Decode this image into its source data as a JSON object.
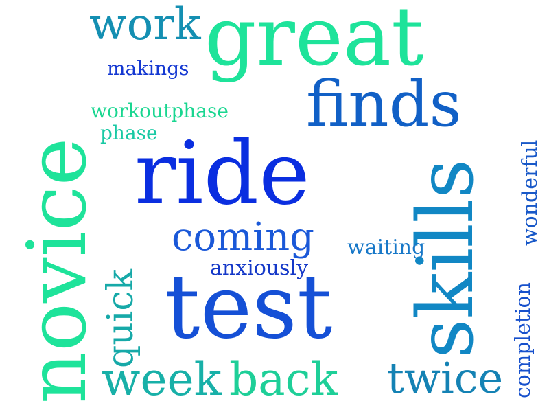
{
  "cloud": {
    "words": [
      {
        "id": "great",
        "text": "great",
        "color": "#1ee39a"
      },
      {
        "id": "ride",
        "text": "ride",
        "color": "#0a2ee0"
      },
      {
        "id": "test",
        "text": "test",
        "color": "#1550d6"
      },
      {
        "id": "novice",
        "text": "novice",
        "color": "#1ee39a"
      },
      {
        "id": "skills",
        "text": "skills",
        "color": "#1187c4"
      },
      {
        "id": "finds",
        "text": "finds",
        "color": "#1160c6"
      },
      {
        "id": "work",
        "text": "work",
        "color": "#148fb2"
      },
      {
        "id": "makings",
        "text": "makings",
        "color": "#1438d2"
      },
      {
        "id": "workoutphase",
        "text": "workoutphase",
        "color": "#19d690"
      },
      {
        "id": "phase",
        "text": "phase",
        "color": "#19c9a4"
      },
      {
        "id": "coming",
        "text": "coming",
        "color": "#1a58d8"
      },
      {
        "id": "waiting",
        "text": "waiting",
        "color": "#1878c8"
      },
      {
        "id": "anxiously",
        "text": "anxiously",
        "color": "#1438c8"
      },
      {
        "id": "quick",
        "text": "quick",
        "color": "#16a9a8"
      },
      {
        "id": "week",
        "text": "week",
        "color": "#18b0a8"
      },
      {
        "id": "back",
        "text": "back",
        "color": "#1ecf98"
      },
      {
        "id": "twice",
        "text": "twice",
        "color": "#1482b4"
      },
      {
        "id": "wonderful",
        "text": "wonderful",
        "color": "#1858c8"
      },
      {
        "id": "completion",
        "text": "completion",
        "color": "#1650cc"
      }
    ]
  }
}
